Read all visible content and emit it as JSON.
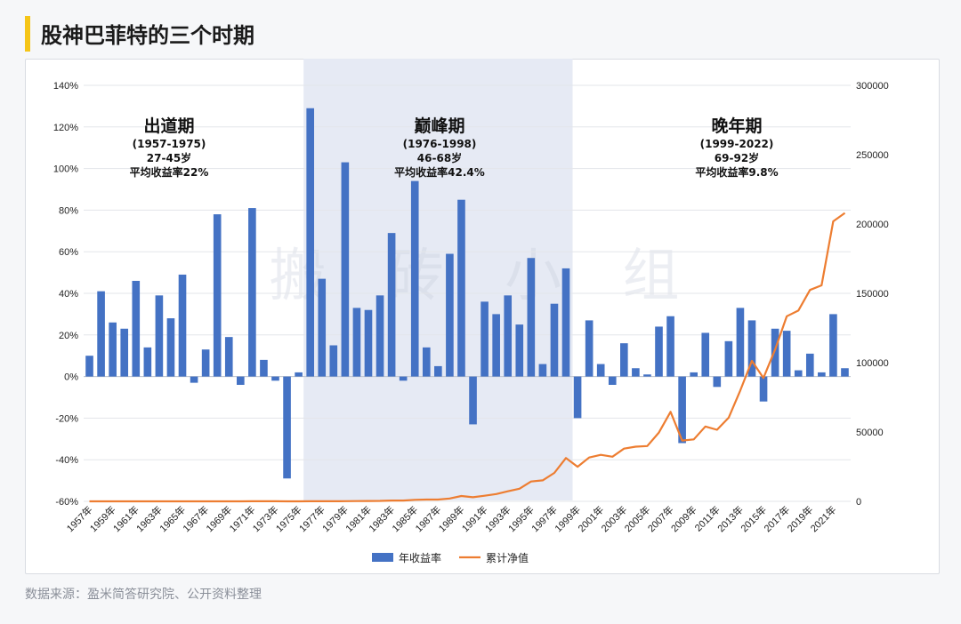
{
  "page": {
    "title": "股神巴菲特的三个时期",
    "source": "数据来源：盈米简答研究院、公开资料整理",
    "watermark": "搬 砖 小 组"
  },
  "colors": {
    "bar": "#4472c4",
    "line": "#ed7d31",
    "shade": "#e6eaf4",
    "accent": "#f5c518"
  },
  "phases": [
    {
      "name": "出道期",
      "years": "(1957-1975)",
      "age": "27-45岁",
      "ret": "平均收益率22%"
    },
    {
      "name": "巅峰期",
      "years": "(1976-1998)",
      "age": "46-68岁",
      "ret": "平均收益率42.4%"
    },
    {
      "name": "晚年期",
      "years": "(1999-2022)",
      "age": "69-92岁",
      "ret": "平均收益率9.8%"
    }
  ],
  "chart_data": {
    "type": "bar",
    "x": [
      1957,
      1958,
      1959,
      1960,
      1961,
      1962,
      1963,
      1964,
      1965,
      1966,
      1967,
      1968,
      1969,
      1970,
      1971,
      1972,
      1973,
      1974,
      1975,
      1976,
      1977,
      1978,
      1979,
      1980,
      1981,
      1982,
      1983,
      1984,
      1985,
      1986,
      1987,
      1988,
      1989,
      1990,
      1991,
      1992,
      1993,
      1994,
      1995,
      1996,
      1997,
      1998,
      1999,
      2000,
      2001,
      2002,
      2003,
      2004,
      2005,
      2006,
      2007,
      2008,
      2009,
      2010,
      2011,
      2012,
      2013,
      2014,
      2015,
      2016,
      2017,
      2018,
      2019,
      2020,
      2021,
      2022
    ],
    "x_tick_labels": [
      "1957年",
      "1959年",
      "1961年",
      "1963年",
      "1965年",
      "1967年",
      "1969年",
      "1971年",
      "1973年",
      "1975年",
      "1977年",
      "1979年",
      "1981年",
      "1983年",
      "1985年",
      "1987年",
      "1989年",
      "1991年",
      "1993年",
      "1995年",
      "1997年",
      "1999年",
      "2001年",
      "2003年",
      "2005年",
      "2007年",
      "2009年",
      "2011年",
      "2013年",
      "2015年",
      "2017年",
      "2019年",
      "2021年"
    ],
    "shaded_range": [
      1976,
      1998
    ],
    "y_left": {
      "ylim": [
        -60,
        140
      ],
      "ticks": [
        140,
        120,
        100,
        80,
        60,
        40,
        20,
        0,
        -20,
        -40,
        -60
      ],
      "tick_labels": [
        "140%",
        "120%",
        "100%",
        "80%",
        "60%",
        "40%",
        "20%",
        "0%",
        "-20%",
        "-40%",
        "-60%"
      ]
    },
    "y_right": {
      "ylim": [
        0,
        300000
      ],
      "ticks": [
        300000,
        250000,
        200000,
        150000,
        100000,
        50000,
        0
      ],
      "tick_labels": [
        "300000",
        "250000",
        "200000",
        "150000",
        "100000",
        "50000",
        "0"
      ]
    },
    "series": [
      {
        "name": "年收益率",
        "type": "bar",
        "axis": "left",
        "values": [
          10,
          41,
          26,
          23,
          46,
          14,
          39,
          28,
          49,
          -3,
          13,
          78,
          19,
          -4,
          81,
          8,
          -2,
          -49,
          2,
          129,
          47,
          15,
          103,
          33,
          32,
          39,
          69,
          -2,
          94,
          14,
          5,
          59,
          85,
          -23,
          36,
          30,
          39,
          25,
          57,
          6,
          35,
          52,
          -20,
          27,
          6,
          -4,
          16,
          4,
          1,
          24,
          29,
          -32,
          2,
          21,
          -5,
          17,
          33,
          27,
          -12,
          23,
          22,
          3,
          11,
          2,
          30,
          4
        ]
      },
      {
        "name": "累计净值",
        "type": "line",
        "axis": "right",
        "values": [
          1,
          1,
          2,
          2,
          3,
          3,
          4,
          6,
          9,
          8,
          9,
          17,
          20,
          19,
          34,
          37,
          36,
          18,
          19,
          43,
          63,
          72,
          147,
          195,
          254,
          342,
          577,
          565,
          1097,
          1251,
          1311,
          2080,
          3859,
          2963,
          4036,
          5237,
          7263,
          9100,
          14321,
          15150,
          20488,
          31192,
          24953,
          31629,
          33512,
          32153,
          37982,
          39439,
          39855,
          49601,
          64562,
          43823,
          44700,
          54003,
          51574,
          60330,
          79861,
          101276,
          88960,
          109509,
          133491,
          137579,
          152442,
          155766,
          201919,
          207934
        ]
      }
    ]
  }
}
